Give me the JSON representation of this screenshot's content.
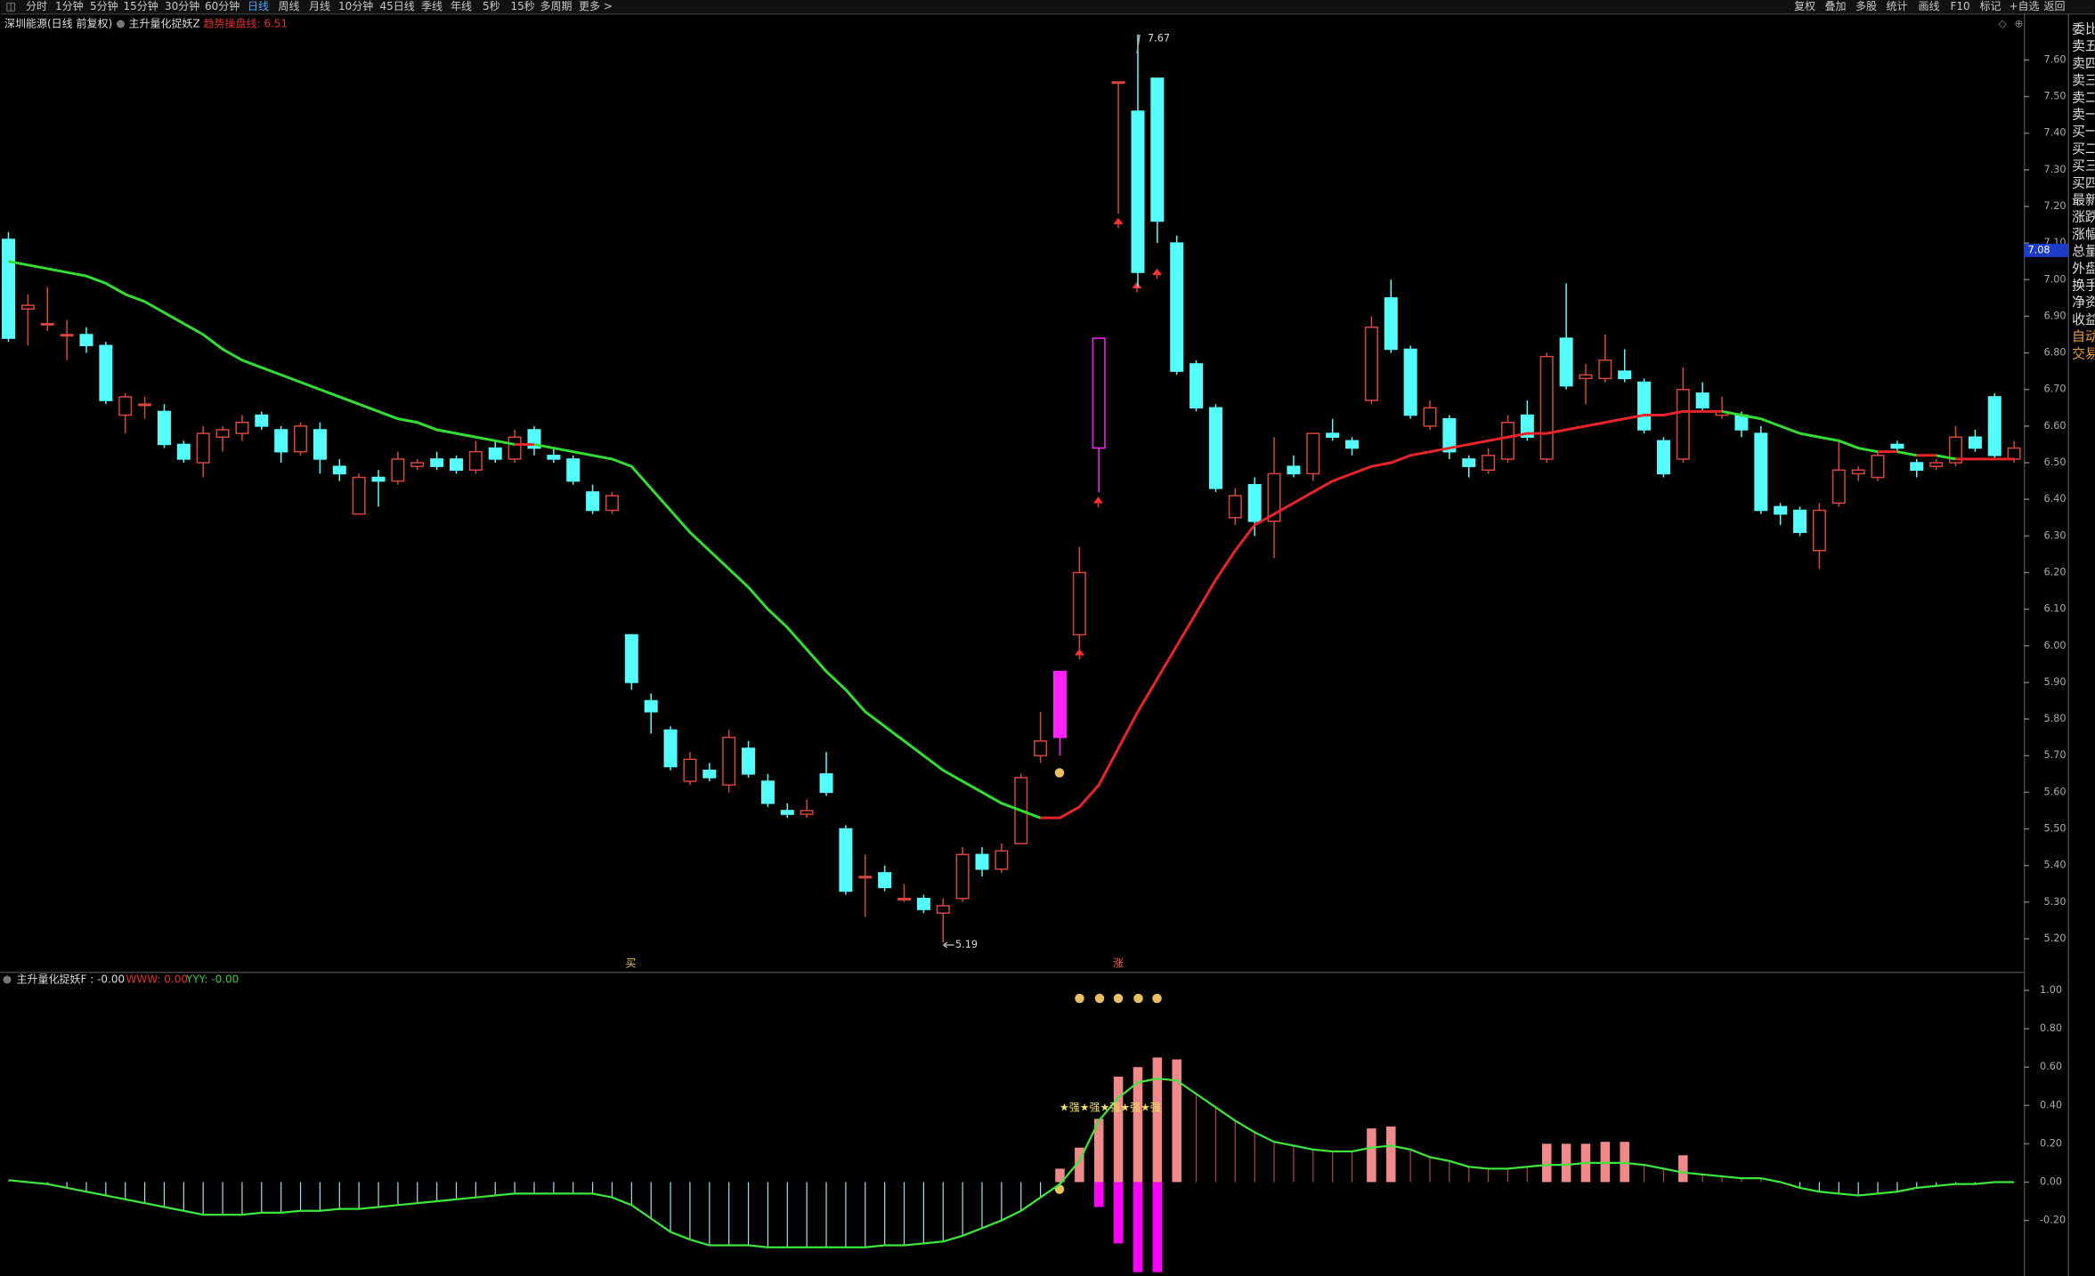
{
  "toolbar": {
    "left": [
      "分时",
      "1分钟",
      "5分钟",
      "15分钟",
      "30分钟",
      "60分钟",
      "日线",
      "周线",
      "月线",
      "10分钟",
      "45日线",
      "季线",
      "年线",
      "5秒",
      "15秒",
      "多周期",
      "更多 >"
    ],
    "active_index": 6,
    "right": [
      "复权",
      "叠加",
      "多股",
      "统计",
      "画线",
      "F10",
      "标记",
      "+自选",
      "返回"
    ]
  },
  "header": {
    "stock": "深圳能源(日线 前复权)",
    "indicator": "主升量化捉妖Z",
    "trend_line": "趋势操盘线: 6.51"
  },
  "sidebar": [
    "委比",
    "卖五",
    "卖四",
    "卖三",
    "卖二",
    "卖一",
    "买一",
    "买二",
    "买三",
    "买四",
    "最新",
    "涨跌",
    "涨幅",
    "总量",
    "外盘",
    "换手",
    "净资",
    "收益",
    "自动",
    "交易"
  ],
  "chart_data": [
    {
      "type": "candlestick",
      "ohlc": [
        [
          7.11,
          7.13,
          6.83,
          6.84
        ],
        [
          6.92,
          6.96,
          6.82,
          6.93
        ],
        [
          6.88,
          6.98,
          6.86,
          6.88
        ],
        [
          6.85,
          6.89,
          6.78,
          6.85
        ],
        [
          6.85,
          6.87,
          6.8,
          6.82
        ],
        [
          6.82,
          6.83,
          6.66,
          6.67
        ],
        [
          6.63,
          6.69,
          6.58,
          6.68
        ],
        [
          6.66,
          6.68,
          6.62,
          6.66
        ],
        [
          6.64,
          6.66,
          6.54,
          6.55
        ],
        [
          6.55,
          6.56,
          6.5,
          6.51
        ],
        [
          6.5,
          6.6,
          6.46,
          6.58
        ],
        [
          6.57,
          6.6,
          6.53,
          6.59
        ],
        [
          6.58,
          6.63,
          6.56,
          6.61
        ],
        [
          6.63,
          6.64,
          6.59,
          6.6
        ],
        [
          6.59,
          6.6,
          6.5,
          6.53
        ],
        [
          6.53,
          6.61,
          6.52,
          6.6
        ],
        [
          6.59,
          6.61,
          6.47,
          6.51
        ],
        [
          6.49,
          6.51,
          6.45,
          6.47
        ],
        [
          6.36,
          6.47,
          6.36,
          6.46
        ],
        [
          6.46,
          6.48,
          6.38,
          6.45
        ],
        [
          6.45,
          6.53,
          6.44,
          6.51
        ],
        [
          6.49,
          6.51,
          6.48,
          6.5
        ],
        [
          6.51,
          6.53,
          6.48,
          6.49
        ],
        [
          6.51,
          6.52,
          6.47,
          6.48
        ],
        [
          6.48,
          6.56,
          6.47,
          6.53
        ],
        [
          6.54,
          6.56,
          6.5,
          6.51
        ],
        [
          6.51,
          6.59,
          6.5,
          6.57
        ],
        [
          6.59,
          6.6,
          6.52,
          6.54
        ],
        [
          6.52,
          6.54,
          6.5,
          6.51
        ],
        [
          6.51,
          6.52,
          6.44,
          6.45
        ],
        [
          6.42,
          6.44,
          6.36,
          6.37
        ],
        [
          6.37,
          6.42,
          6.36,
          6.41
        ],
        [
          6.03,
          6.03,
          5.88,
          5.9
        ],
        [
          5.85,
          5.87,
          5.76,
          5.82
        ],
        [
          5.77,
          5.78,
          5.66,
          5.67
        ],
        [
          5.63,
          5.71,
          5.62,
          5.69
        ],
        [
          5.66,
          5.68,
          5.63,
          5.64
        ],
        [
          5.62,
          5.77,
          5.6,
          5.75
        ],
        [
          5.72,
          5.74,
          5.64,
          5.65
        ],
        [
          5.63,
          5.65,
          5.56,
          5.57
        ],
        [
          5.55,
          5.57,
          5.53,
          5.54
        ],
        [
          5.54,
          5.58,
          5.53,
          5.55
        ],
        [
          5.65,
          5.71,
          5.59,
          5.6
        ],
        [
          5.5,
          5.51,
          5.32,
          5.33
        ],
        [
          5.37,
          5.43,
          5.26,
          5.37
        ],
        [
          5.38,
          5.4,
          5.33,
          5.34
        ],
        [
          5.31,
          5.35,
          5.3,
          5.31
        ],
        [
          5.31,
          5.32,
          5.27,
          5.28
        ],
        [
          5.27,
          5.31,
          5.19,
          5.29
        ],
        [
          5.31,
          5.45,
          5.3,
          5.43
        ],
        [
          5.43,
          5.45,
          5.37,
          5.39
        ],
        [
          5.39,
          5.46,
          5.38,
          5.44
        ],
        [
          5.46,
          5.65,
          5.46,
          5.64
        ],
        [
          5.7,
          5.82,
          5.68,
          5.74
        ],
        [
          5.93,
          5.93,
          5.7,
          5.75
        ],
        [
          6.03,
          6.27,
          5.99,
          6.2
        ],
        [
          6.54,
          6.84,
          6.42,
          6.84
        ],
        [
          7.54,
          7.54,
          7.18,
          7.54
        ],
        [
          7.46,
          7.67,
          6.98,
          7.02
        ],
        [
          7.55,
          7.55,
          7.1,
          7.16
        ],
        [
          7.1,
          7.12,
          6.74,
          6.75
        ],
        [
          6.77,
          6.78,
          6.64,
          6.65
        ],
        [
          6.65,
          6.66,
          6.42,
          6.43
        ],
        [
          6.35,
          6.43,
          6.33,
          6.41
        ],
        [
          6.44,
          6.46,
          6.3,
          6.34
        ],
        [
          6.34,
          6.57,
          6.24,
          6.47
        ],
        [
          6.49,
          6.52,
          6.46,
          6.47
        ],
        [
          6.47,
          6.58,
          6.45,
          6.58
        ],
        [
          6.58,
          6.62,
          6.56,
          6.57
        ],
        [
          6.56,
          6.57,
          6.52,
          6.54
        ],
        [
          6.67,
          6.9,
          6.66,
          6.87
        ],
        [
          6.95,
          7.0,
          6.8,
          6.81
        ],
        [
          6.81,
          6.82,
          6.62,
          6.63
        ],
        [
          6.6,
          6.67,
          6.59,
          6.65
        ],
        [
          6.62,
          6.63,
          6.51,
          6.53
        ],
        [
          6.51,
          6.52,
          6.46,
          6.49
        ],
        [
          6.48,
          6.54,
          6.47,
          6.52
        ],
        [
          6.51,
          6.63,
          6.5,
          6.61
        ],
        [
          6.63,
          6.67,
          6.56,
          6.57
        ],
        [
          6.51,
          6.8,
          6.5,
          6.79
        ],
        [
          6.84,
          6.99,
          6.7,
          6.71
        ],
        [
          6.73,
          6.77,
          6.66,
          6.74
        ],
        [
          6.73,
          6.85,
          6.72,
          6.78
        ],
        [
          6.75,
          6.81,
          6.72,
          6.73
        ],
        [
          6.72,
          6.73,
          6.58,
          6.59
        ],
        [
          6.56,
          6.57,
          6.46,
          6.47
        ],
        [
          6.51,
          6.76,
          6.5,
          6.7
        ],
        [
          6.69,
          6.72,
          6.64,
          6.65
        ],
        [
          6.63,
          6.68,
          6.62,
          6.64
        ],
        [
          6.63,
          6.64,
          6.57,
          6.59
        ],
        [
          6.58,
          6.6,
          6.36,
          6.37
        ],
        [
          6.38,
          6.39,
          6.33,
          6.36
        ],
        [
          6.37,
          6.38,
          6.3,
          6.31
        ],
        [
          6.26,
          6.39,
          6.21,
          6.37
        ],
        [
          6.39,
          6.56,
          6.38,
          6.48
        ],
        [
          6.47,
          6.49,
          6.45,
          6.48
        ],
        [
          6.46,
          6.53,
          6.45,
          6.52
        ],
        [
          6.55,
          6.56,
          6.53,
          6.54
        ],
        [
          6.5,
          6.51,
          6.46,
          6.48
        ],
        [
          6.49,
          6.51,
          6.48,
          6.5
        ],
        [
          6.5,
          6.6,
          6.49,
          6.57
        ],
        [
          6.57,
          6.59,
          6.53,
          6.54
        ],
        [
          6.68,
          6.69,
          6.51,
          6.52
        ],
        [
          6.51,
          6.56,
          6.5,
          6.54
        ]
      ],
      "ma": [
        7.05,
        7.04,
        7.03,
        7.02,
        7.01,
        6.99,
        6.96,
        6.94,
        6.91,
        6.88,
        6.85,
        6.81,
        6.78,
        6.76,
        6.74,
        6.72,
        6.7,
        6.68,
        6.66,
        6.64,
        6.62,
        6.61,
        6.59,
        6.58,
        6.57,
        6.56,
        6.55,
        6.55,
        6.54,
        6.53,
        6.52,
        6.51,
        6.49,
        6.43,
        6.37,
        6.31,
        6.26,
        6.21,
        6.16,
        6.1,
        6.05,
        5.99,
        5.93,
        5.88,
        5.82,
        5.78,
        5.74,
        5.7,
        5.66,
        5.63,
        5.6,
        5.57,
        5.55,
        5.53,
        5.53,
        5.56,
        5.62,
        5.72,
        5.82,
        5.91,
        6.0,
        6.09,
        6.18,
        6.26,
        6.33,
        6.36,
        6.39,
        6.42,
        6.45,
        6.47,
        6.49,
        6.5,
        6.52,
        6.53,
        6.54,
        6.55,
        6.56,
        6.57,
        6.58,
        6.58,
        6.59,
        6.6,
        6.61,
        6.62,
        6.63,
        6.63,
        6.64,
        6.64,
        6.64,
        6.63,
        6.62,
        6.6,
        6.58,
        6.57,
        6.56,
        6.54,
        6.53,
        6.53,
        6.52,
        6.52,
        6.51,
        6.51,
        6.51,
        6.51
      ],
      "up_color": "#d8463e",
      "down_color": "#54fcfc",
      "highlight_color": "#ff22ff",
      "highlight": [
        54,
        56
      ],
      "ma_up_color": "#e8242a",
      "ma_down_color": "#33dd33",
      "ylim": [
        5.11,
        7.72
      ],
      "yticks": [
        {
          "value": 7.6,
          "label": "7.60"
        },
        {
          "value": 7.5,
          "label": "7.50"
        },
        {
          "value": 7.4,
          "label": "7.40"
        },
        {
          "value": 7.3,
          "label": "7.30"
        },
        {
          "value": 7.2,
          "label": "7.20"
        },
        {
          "value": 7.1,
          "label": "7.10"
        },
        {
          "value": 7.0,
          "label": "7.00"
        },
        {
          "value": 6.9,
          "label": "6.90"
        },
        {
          "value": 6.8,
          "label": "6.80"
        },
        {
          "value": 6.7,
          "label": "6.70"
        },
        {
          "value": 6.6,
          "label": "6.60"
        },
        {
          "value": 6.5,
          "label": "6.50"
        },
        {
          "value": 6.4,
          "label": "6.40"
        },
        {
          "value": 6.3,
          "label": "6.30"
        },
        {
          "value": 6.2,
          "label": "6.20"
        },
        {
          "value": 6.1,
          "label": "6.10"
        },
        {
          "value": 6.0,
          "label": "6.00"
        },
        {
          "value": 5.9,
          "label": "5.90"
        },
        {
          "value": 5.8,
          "label": "5.80"
        },
        {
          "value": 5.7,
          "label": "5.70"
        },
        {
          "value": 5.6,
          "label": "5.60"
        },
        {
          "value": 5.5,
          "label": "5.50"
        },
        {
          "value": 5.4,
          "label": "5.40"
        },
        {
          "value": 5.3,
          "label": "5.30"
        },
        {
          "value": 5.2,
          "label": "5.20"
        }
      ],
      "last_price": 7.08,
      "annotations": {
        "high": "7.67",
        "low": "5.19",
        "buy": "买",
        "rise": "涨"
      }
    },
    {
      "type": "indicator",
      "title": "主升量化捉妖F : -0.00",
      "www": "WWW: 0.00",
      "yyy": "YYY: -0.00",
      "strong": "★强★强★强★强★强",
      "line": [
        0.01,
        0.0,
        -0.01,
        -0.03,
        -0.05,
        -0.07,
        -0.09,
        -0.11,
        -0.13,
        -0.15,
        -0.17,
        -0.17,
        -0.17,
        -0.16,
        -0.16,
        -0.15,
        -0.15,
        -0.14,
        -0.14,
        -0.13,
        -0.12,
        -0.11,
        -0.1,
        -0.09,
        -0.08,
        -0.07,
        -0.06,
        -0.06,
        -0.06,
        -0.06,
        -0.06,
        -0.08,
        -0.12,
        -0.19,
        -0.26,
        -0.3,
        -0.33,
        -0.33,
        -0.33,
        -0.34,
        -0.34,
        -0.34,
        -0.34,
        -0.34,
        -0.34,
        -0.33,
        -0.33,
        -0.32,
        -0.31,
        -0.28,
        -0.24,
        -0.2,
        -0.15,
        -0.08,
        -0.01,
        0.11,
        0.32,
        0.44,
        0.52,
        0.54,
        0.53,
        0.46,
        0.39,
        0.32,
        0.26,
        0.21,
        0.19,
        0.17,
        0.16,
        0.16,
        0.18,
        0.19,
        0.17,
        0.13,
        0.11,
        0.08,
        0.07,
        0.07,
        0.08,
        0.09,
        0.09,
        0.1,
        0.1,
        0.1,
        0.09,
        0.07,
        0.05,
        0.04,
        0.03,
        0.02,
        0.02,
        0.0,
        -0.03,
        -0.05,
        -0.06,
        -0.07,
        -0.06,
        -0.05,
        -0.03,
        -0.02,
        -0.01,
        -0.01,
        0.0,
        0.0
      ],
      "up_bars": [
        null,
        null,
        null,
        null,
        null,
        null,
        null,
        null,
        null,
        null,
        null,
        null,
        null,
        null,
        null,
        null,
        null,
        null,
        null,
        null,
        null,
        null,
        null,
        null,
        null,
        null,
        null,
        null,
        null,
        null,
        null,
        null,
        null,
        null,
        null,
        null,
        null,
        null,
        null,
        null,
        null,
        null,
        null,
        null,
        null,
        null,
        null,
        null,
        null,
        null,
        null,
        null,
        null,
        null,
        0.07,
        0.18,
        0.33,
        0.55,
        0.6,
        0.65,
        0.64,
        null,
        null,
        null,
        null,
        null,
        null,
        null,
        null,
        null,
        0.28,
        0.29,
        null,
        null,
        null,
        null,
        null,
        null,
        null,
        0.2,
        0.2,
        0.2,
        0.21,
        0.21,
        null,
        null,
        0.14,
        null,
        null,
        null,
        null,
        null,
        null,
        null,
        null,
        null,
        null,
        null,
        null,
        null,
        null,
        null,
        null,
        null
      ],
      "down_bars": [
        null,
        null,
        null,
        null,
        null,
        null,
        null,
        null,
        null,
        null,
        null,
        null,
        null,
        null,
        null,
        null,
        null,
        null,
        null,
        null,
        null,
        null,
        null,
        null,
        null,
        null,
        null,
        null,
        null,
        null,
        null,
        null,
        null,
        null,
        null,
        null,
        null,
        null,
        null,
        null,
        null,
        null,
        null,
        null,
        null,
        null,
        null,
        null,
        null,
        null,
        null,
        null,
        null,
        null,
        null,
        null,
        -0.13,
        -0.32,
        -0.47,
        -0.47,
        null,
        null,
        null,
        null,
        null,
        null,
        null,
        null,
        null,
        null,
        null,
        null,
        null,
        null,
        null,
        null,
        null,
        null,
        null,
        null,
        null,
        null,
        null,
        null,
        null,
        null,
        null,
        null,
        null,
        null,
        null,
        null,
        null,
        null,
        null,
        null,
        null,
        null,
        null,
        null,
        null,
        null,
        null,
        null
      ],
      "line_color": "#3ce63c",
      "stem_up_color": "#b04848",
      "stem_down_color": "#a8dcec",
      "bar_up_color": "#f08a8a",
      "bar_down_color": "#ff00ff",
      "ylim": [
        -0.49,
        1.07
      ],
      "yticks": [
        {
          "value": 1.0,
          "label": "1.00"
        },
        {
          "value": 0.8,
          "label": "0.80"
        },
        {
          "value": 0.6,
          "label": "0.60"
        },
        {
          "value": 0.4,
          "label": "0.40"
        },
        {
          "value": 0.2,
          "label": "0.20"
        },
        {
          "value": 0,
          "label": "0.00"
        },
        {
          "value": -0.2,
          "label": "-0.20"
        }
      ]
    }
  ]
}
